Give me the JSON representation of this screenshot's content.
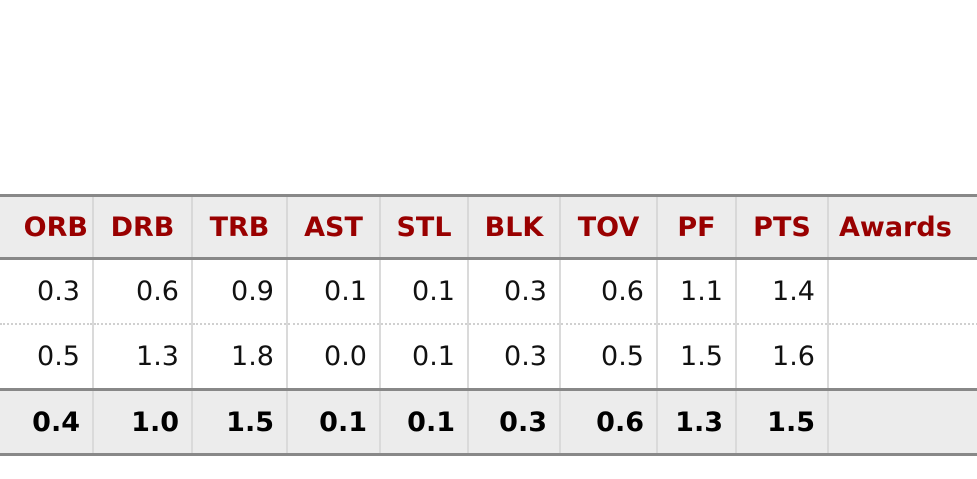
{
  "table": {
    "headers": [
      "ORB",
      "DRB",
      "TRB",
      "AST",
      "STL",
      "BLK",
      "TOV",
      "PF",
      "PTS",
      "Awards"
    ],
    "rows": [
      [
        "0.3",
        "0.6",
        "0.9",
        "0.1",
        "0.1",
        "0.3",
        "0.6",
        "1.1",
        "1.4",
        ""
      ],
      [
        "0.5",
        "1.3",
        "1.8",
        "0.0",
        "0.1",
        "0.3",
        "0.5",
        "1.5",
        "1.6",
        ""
      ]
    ],
    "footer": [
      "0.4",
      "1.0",
      "1.5",
      "0.1",
      "0.1",
      "0.3",
      "0.6",
      "1.3",
      "1.5",
      ""
    ]
  },
  "colors": {
    "header_text": "#990000",
    "header_bg": "#ececec"
  }
}
